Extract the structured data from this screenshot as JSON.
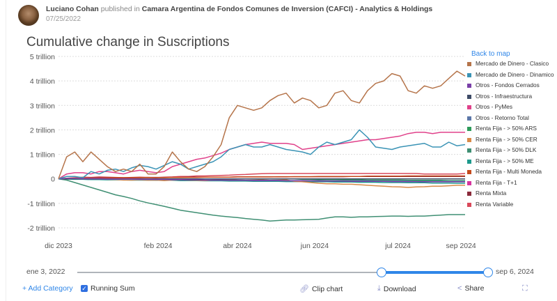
{
  "header": {
    "author": "Luciano Cohan",
    "published_in": "published in",
    "group": "Camara Argentina de Fondos Comunes de Inversion (CAFCI) - Analytics & Holdings",
    "date": "07/25/2022"
  },
  "legend": {
    "back_label": "Back to map"
  },
  "slider": {
    "start_label": "ene 3, 2022",
    "end_label": "sep 6, 2024",
    "selected_range_fraction": [
      0.74,
      1.0
    ]
  },
  "toolbar": {
    "add_category": "+ Add Category",
    "running_sum": "Running Sum",
    "running_sum_checked": true,
    "clip": "Clip chart",
    "download": "Download",
    "share": "Share",
    "icons": {
      "clip": "link-icon",
      "download": "download-icon",
      "share": "share-icon",
      "expand": "expand-icon"
    }
  },
  "chart_data": {
    "type": "line",
    "title": "Cumulative change in Suscriptions",
    "xlabel": "",
    "ylabel": "",
    "ylim": [
      -2,
      5
    ],
    "y_unit": "trillion",
    "yticks": [
      "5 trillion",
      "4 trillion",
      "3 trillion",
      "2 trillion",
      "1 trillion",
      "0",
      "-1 trillion",
      "-2 trillion"
    ],
    "ytick_values": [
      5,
      4,
      3,
      2,
      1,
      0,
      -1,
      -2
    ],
    "xticks": [
      "dic 2023",
      "feb 2024",
      "abr 2024",
      "jun 2024",
      "jul 2024",
      "sep 2024"
    ],
    "xtick_positions": [
      0,
      0.245,
      0.44,
      0.63,
      0.835,
      0.99
    ],
    "grid": true,
    "legend_position": "right",
    "x": [
      0,
      0.02,
      0.04,
      0.06,
      0.08,
      0.1,
      0.12,
      0.14,
      0.16,
      0.18,
      0.2,
      0.22,
      0.24,
      0.26,
      0.28,
      0.3,
      0.32,
      0.34,
      0.36,
      0.38,
      0.4,
      0.42,
      0.44,
      0.46,
      0.48,
      0.5,
      0.52,
      0.54,
      0.56,
      0.58,
      0.6,
      0.62,
      0.64,
      0.66,
      0.68,
      0.7,
      0.72,
      0.74,
      0.76,
      0.78,
      0.8,
      0.82,
      0.84,
      0.86,
      0.88,
      0.9,
      0.92,
      0.94,
      0.96,
      0.98,
      1.0
    ],
    "series": [
      {
        "name": "Mercado de Dinero - Clasico",
        "color": "#b5744a",
        "values": [
          0,
          0.9,
          1.1,
          0.7,
          1.1,
          0.8,
          0.5,
          0.3,
          0.4,
          0.3,
          0.6,
          0.2,
          0.2,
          0.5,
          1.1,
          0.7,
          0.4,
          0.3,
          0.5,
          0.9,
          1.4,
          2.5,
          3.0,
          2.9,
          2.8,
          2.9,
          3.2,
          3.4,
          3.5,
          3.1,
          3.3,
          3.2,
          2.9,
          3.0,
          3.5,
          3.6,
          3.2,
          3.1,
          3.6,
          3.9,
          4.0,
          4.3,
          4.2,
          3.6,
          3.5,
          3.8,
          3.7,
          3.8,
          4.1,
          4.4,
          4.2
        ]
      },
      {
        "name": "Mercado de Dinero - Dinamico",
        "color": "#3a93b5",
        "values": [
          0,
          0.1,
          0.1,
          0.05,
          0.3,
          0.2,
          0.35,
          0.4,
          0.3,
          0.45,
          0.55,
          0.5,
          0.4,
          0.55,
          0.7,
          0.6,
          0.4,
          0.5,
          0.6,
          0.7,
          0.9,
          1.2,
          1.3,
          1.4,
          1.3,
          1.3,
          1.4,
          1.3,
          1.2,
          1.15,
          1.1,
          1.0,
          1.3,
          1.5,
          1.4,
          1.5,
          1.6,
          2.0,
          1.7,
          1.3,
          1.25,
          1.2,
          1.3,
          1.35,
          1.4,
          1.45,
          1.3,
          1.3,
          1.5,
          1.35,
          1.4
        ]
      },
      {
        "name": "Otros - Fondos Cerrados",
        "color": "#7a3fa8",
        "values": [
          0,
          0.02,
          0.02,
          0.01,
          0.01,
          0.01,
          0,
          0,
          0,
          0,
          -0.01,
          -0.01,
          -0.02,
          -0.02,
          -0.03,
          -0.03,
          -0.04,
          -0.04,
          -0.05,
          -0.05,
          -0.05,
          -0.06,
          -0.06,
          -0.06,
          -0.07,
          -0.07,
          -0.07,
          -0.07,
          -0.08,
          -0.08,
          -0.08,
          -0.08,
          -0.09,
          -0.09,
          -0.09,
          -0.09,
          -0.1,
          -0.1,
          -0.1,
          -0.1,
          -0.1,
          -0.11,
          -0.11,
          -0.11,
          -0.11,
          -0.12,
          -0.12,
          -0.12,
          -0.12,
          -0.12,
          -0.12
        ]
      },
      {
        "name": "Otros - Infraestructura",
        "color": "#3d4a66",
        "values": [
          0,
          0,
          0,
          0,
          0,
          0,
          0,
          0,
          0,
          0,
          0,
          0,
          0,
          0,
          0,
          0,
          0,
          0,
          0,
          0,
          0,
          0,
          0,
          0,
          0,
          0,
          0,
          0,
          0,
          0,
          0,
          0,
          0,
          0,
          0,
          0,
          0,
          0,
          0,
          0,
          0,
          0,
          0,
          0,
          0,
          0,
          0,
          0,
          0,
          0,
          0
        ]
      },
      {
        "name": "Otros - PyMes",
        "color": "#e0418a",
        "values": [
          0,
          0.2,
          0.25,
          0.25,
          0.2,
          0.3,
          0.3,
          0.25,
          0.2,
          0.3,
          0.35,
          0.3,
          0.25,
          0.3,
          0.5,
          0.6,
          0.7,
          0.8,
          0.85,
          0.95,
          1.05,
          1.2,
          1.3,
          1.4,
          1.45,
          1.5,
          1.45,
          1.45,
          1.45,
          1.4,
          1.2,
          1.25,
          1.3,
          1.35,
          1.4,
          1.45,
          1.5,
          1.55,
          1.6,
          1.6,
          1.65,
          1.7,
          1.75,
          1.85,
          1.9,
          1.9,
          1.85,
          1.9,
          1.9,
          1.9,
          1.9
        ]
      },
      {
        "name": "Otros - Retorno Total",
        "color": "#5b77a8",
        "values": [
          0,
          0,
          0,
          -0.01,
          -0.01,
          -0.01,
          -0.02,
          -0.02,
          -0.02,
          -0.02,
          -0.03,
          -0.03,
          -0.03,
          -0.03,
          -0.04,
          -0.04,
          -0.04,
          -0.04,
          -0.05,
          -0.05,
          -0.05,
          -0.05,
          -0.05,
          -0.06,
          -0.06,
          -0.06,
          -0.06,
          -0.06,
          -0.07,
          -0.07,
          -0.07,
          -0.07,
          -0.07,
          -0.08,
          -0.08,
          -0.08,
          -0.08,
          -0.08,
          -0.08,
          -0.09,
          -0.09,
          -0.09,
          -0.09,
          -0.09,
          -0.1,
          -0.1,
          -0.1,
          -0.1,
          -0.1,
          -0.1,
          -0.1
        ]
      },
      {
        "name": "Renta Fija - > 50% ARS",
        "color": "#2d9b5a",
        "values": [
          0,
          0,
          0,
          0,
          0,
          0,
          0,
          0,
          0,
          0,
          0,
          0,
          0,
          0,
          0,
          0,
          0,
          0,
          0,
          0,
          0,
          0,
          0,
          0,
          0,
          0,
          0,
          0,
          0,
          0,
          -0.02,
          -0.02,
          -0.03,
          -0.03,
          -0.03,
          -0.04,
          -0.04,
          -0.04,
          -0.05,
          -0.05,
          -0.05,
          -0.05,
          -0.05,
          -0.06,
          -0.06,
          -0.06,
          -0.06,
          -0.06,
          -0.07,
          -0.07,
          -0.07
        ]
      },
      {
        "name": "Renta Fija - > 50% CER",
        "color": "#d98a48",
        "values": [
          0,
          0.02,
          0.03,
          0.02,
          0.01,
          0,
          -0.02,
          -0.03,
          -0.05,
          -0.05,
          -0.04,
          -0.06,
          -0.05,
          -0.07,
          -0.05,
          -0.04,
          -0.05,
          -0.06,
          -0.07,
          -0.05,
          -0.04,
          -0.03,
          -0.05,
          -0.06,
          -0.05,
          -0.04,
          -0.06,
          -0.05,
          -0.04,
          -0.1,
          -0.12,
          -0.15,
          -0.18,
          -0.2,
          -0.2,
          -0.22,
          -0.22,
          -0.24,
          -0.26,
          -0.28,
          -0.3,
          -0.32,
          -0.33,
          -0.35,
          -0.33,
          -0.32,
          -0.3,
          -0.3,
          -0.28,
          -0.26,
          -0.26
        ]
      },
      {
        "name": "Renta Fija - > 50% DLK",
        "color": "#3f8f73",
        "values": [
          0,
          -0.05,
          -0.15,
          -0.25,
          -0.35,
          -0.45,
          -0.55,
          -0.65,
          -0.72,
          -0.8,
          -0.9,
          -0.98,
          -1.05,
          -1.12,
          -1.2,
          -1.28,
          -1.33,
          -1.38,
          -1.43,
          -1.48,
          -1.52,
          -1.55,
          -1.58,
          -1.62,
          -1.65,
          -1.68,
          -1.72,
          -1.7,
          -1.68,
          -1.68,
          -1.67,
          -1.66,
          -1.65,
          -1.6,
          -1.55,
          -1.55,
          -1.57,
          -1.55,
          -1.55,
          -1.54,
          -1.53,
          -1.52,
          -1.52,
          -1.53,
          -1.52,
          -1.52,
          -1.5,
          -1.48,
          -1.46,
          -1.46,
          -1.46
        ]
      },
      {
        "name": "Renta Fija - > 50% ME",
        "color": "#1d9a8c",
        "values": [
          0,
          -0.01,
          -0.02,
          -0.02,
          -0.03,
          -0.03,
          -0.04,
          -0.04,
          -0.04,
          -0.05,
          -0.05,
          -0.05,
          -0.06,
          -0.06,
          -0.06,
          -0.07,
          -0.07,
          -0.07,
          -0.08,
          -0.08,
          -0.08,
          -0.09,
          -0.09,
          -0.09,
          -0.1,
          -0.1,
          -0.1,
          -0.1,
          -0.11,
          -0.11,
          -0.11,
          -0.12,
          -0.12,
          -0.12,
          -0.13,
          -0.13,
          -0.13,
          -0.14,
          -0.14,
          -0.14,
          -0.15,
          -0.15,
          -0.15,
          -0.16,
          -0.16,
          -0.16,
          -0.17,
          -0.17,
          -0.17,
          -0.18,
          -0.18
        ]
      },
      {
        "name": "Renta Fija - Multi Moneda",
        "color": "#c44a1c",
        "values": [
          0,
          0.01,
          0.02,
          0.02,
          0.03,
          0.03,
          0.03,
          0.04,
          0.04,
          0.04,
          0.05,
          0.05,
          0.05,
          0.05,
          0.06,
          0.06,
          0.06,
          0.06,
          0.07,
          0.07,
          0.07,
          0.07,
          0.08,
          0.08,
          0.08,
          0.08,
          0.08,
          0.09,
          0.09,
          0.09,
          0.09,
          0.09,
          0.1,
          0.1,
          0.1,
          0.1,
          0.1,
          0.1,
          0.11,
          0.11,
          0.11,
          0.11,
          0.11,
          0.12,
          0.12,
          0.12,
          0.12,
          0.12,
          0.12,
          0.12,
          0.12
        ]
      },
      {
        "name": "Renta Fija - T+1",
        "color": "#d6359e",
        "values": [
          0,
          0,
          0,
          0,
          0,
          0,
          0,
          0,
          0,
          0,
          0,
          0,
          0,
          0,
          0,
          0,
          0,
          0,
          0,
          0,
          0,
          0,
          0,
          0,
          0,
          0,
          0,
          0,
          0,
          0,
          0,
          0,
          0,
          0,
          0,
          0,
          0,
          0,
          0,
          0,
          0,
          0,
          0,
          0,
          0,
          0,
          0,
          0,
          0,
          0,
          0
        ]
      },
      {
        "name": "Renta Mixta",
        "color": "#8a2a3a",
        "values": [
          0,
          0.02,
          0.03,
          0.03,
          0.04,
          0.04,
          0.04,
          0.05,
          0.05,
          0.05,
          0.05,
          0.06,
          0.06,
          0.06,
          0.06,
          0.06,
          0.07,
          0.07,
          0.07,
          0.07,
          0.07,
          0.07,
          0.08,
          0.08,
          0.08,
          0.08,
          0.08,
          0.08,
          0.08,
          0.09,
          0.09,
          0.09,
          0.09,
          0.09,
          0.09,
          0.09,
          0.1,
          0.1,
          0.1,
          0.1,
          0.1,
          0.1,
          0.1,
          0.1,
          0.1,
          0.1,
          0.1,
          0.1,
          0.1,
          0.1,
          0.1
        ]
      },
      {
        "name": "Renta Variable",
        "color": "#d9495a",
        "values": [
          0,
          0.03,
          0.05,
          0.07,
          0.06,
          0.08,
          0.07,
          0.06,
          0.05,
          0.06,
          0.07,
          0.06,
          0.05,
          0.07,
          0.08,
          0.1,
          0.1,
          0.12,
          0.12,
          0.13,
          0.14,
          0.15,
          0.17,
          0.18,
          0.2,
          0.21,
          0.22,
          0.22,
          0.22,
          0.22,
          0.22,
          0.22,
          0.22,
          0.22,
          0.22,
          0.22,
          0.22,
          0.22,
          0.22,
          0.22,
          0.22,
          0.22,
          0.22,
          0.22,
          0.22,
          0.2,
          0.2,
          0.2,
          0.2,
          0.2,
          0.22
        ]
      }
    ]
  }
}
